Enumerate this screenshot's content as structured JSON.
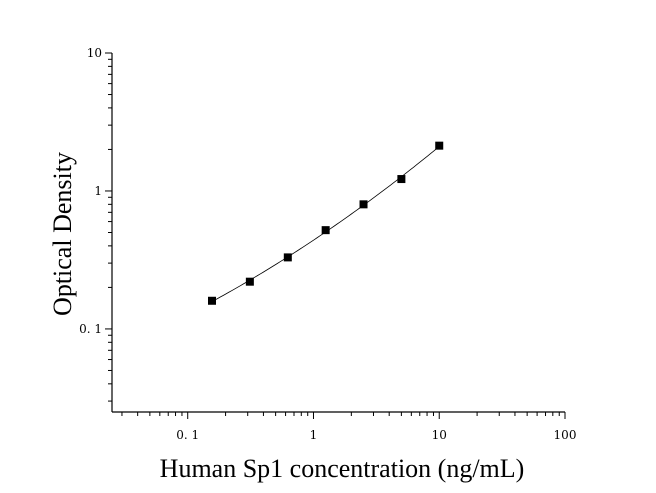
{
  "chart_data": {
    "type": "scatter",
    "xlabel": "Human Sp1 concentration (ng/mL)",
    "ylabel": "Optical Density",
    "xscale": "log",
    "yscale": "log",
    "xlim": [
      0.025,
      100
    ],
    "ylim": [
      0.025,
      10
    ],
    "x_ticks": [
      0.1,
      1,
      10,
      100
    ],
    "x_tick_labels": [
      "0. 1",
      "1",
      "10",
      "100"
    ],
    "y_ticks": [
      0.1,
      1,
      10
    ],
    "y_tick_labels": [
      "0. 1",
      "1",
      "10"
    ],
    "grid": false,
    "series": [
      {
        "marker": "square",
        "color": "#000000",
        "x": [
          0.156,
          0.312,
          0.625,
          1.25,
          2.5,
          5,
          10
        ],
        "y": [
          0.16,
          0.22,
          0.33,
          0.52,
          0.8,
          1.22,
          2.13
        ]
      }
    ],
    "fit_curve": {
      "color": "#000000"
    }
  }
}
